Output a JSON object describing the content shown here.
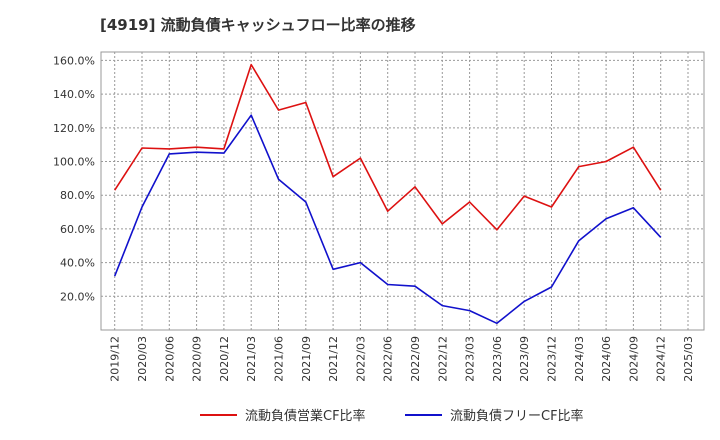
{
  "chart_data": {
    "type": "line",
    "title": "[4919]  流動負債キャッシュフロー比率の推移",
    "xlabel": "",
    "ylabel": "",
    "x": [
      "2019/12",
      "2020/03",
      "2020/06",
      "2020/09",
      "2020/12",
      "2021/03",
      "2021/06",
      "2021/09",
      "2021/12",
      "2022/03",
      "2022/06",
      "2022/09",
      "2022/12",
      "2023/03",
      "2023/06",
      "2023/09",
      "2023/12",
      "2024/03",
      "2024/06",
      "2024/09",
      "2024/12"
    ],
    "xticks": [
      "2019/12",
      "2020/03",
      "2020/06",
      "2020/09",
      "2020/12",
      "2021/03",
      "2021/06",
      "2021/09",
      "2021/12",
      "2022/03",
      "2022/06",
      "2022/09",
      "2022/12",
      "2023/03",
      "2023/06",
      "2023/09",
      "2023/12",
      "2024/03",
      "2024/06",
      "2024/09",
      "2024/12",
      "2025/03"
    ],
    "yticks": [
      "20.0%",
      "40.0%",
      "60.0%",
      "80.0%",
      "100.0%",
      "120.0%",
      "140.0%",
      "160.0%"
    ],
    "ylim": [
      0,
      165
    ],
    "grid": true,
    "legend_position": "bottom",
    "series": [
      {
        "name": "流動負債営業CF比率",
        "color": "#dd1111",
        "values": [
          83,
          108,
          107.5,
          108.5,
          107.5,
          157.5,
          130.5,
          135,
          91,
          102,
          70.5,
          85,
          63,
          76,
          59.5,
          79.5,
          73,
          97,
          100,
          108.5,
          83
        ]
      },
      {
        "name": "流動負債フリーCF比率",
        "color": "#1111cc",
        "values": [
          32,
          73,
          104.5,
          105.5,
          105,
          127.5,
          89.5,
          76,
          36,
          40,
          27,
          26,
          14.5,
          11.5,
          4,
          17,
          25.5,
          53,
          66,
          72.5,
          55
        ]
      }
    ]
  }
}
